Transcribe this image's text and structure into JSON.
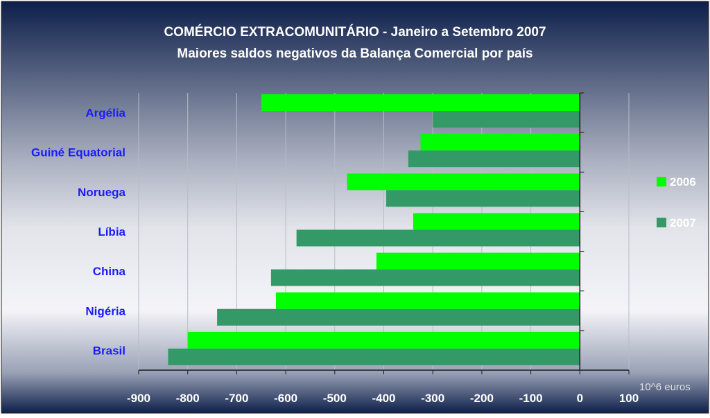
{
  "colors": {
    "bg_top": "#0d1f4a",
    "bg_bottom": "#f4f4f8",
    "title": "#ffffff",
    "category_label": "#1a1aff",
    "tick_label": "#ffffff",
    "legend_text": "#ffffff",
    "unit_label": "#e0e0e0",
    "series_2006": "#00ff00",
    "series_2007": "#339966",
    "gridline": "#b8bcc8"
  },
  "chart_data": {
    "type": "bar",
    "orientation": "horizontal",
    "title": "COMÉRCIO EXTRACOMUNITÁRIO - Janeiro a Setembro 2007",
    "subtitle": "Maiores saldos negativos da Balança Comercial por país",
    "categories": [
      "Argélia",
      "Guiné Equatorial",
      "Noruega",
      "Líbia",
      "China",
      "Nigéria",
      "Brasil"
    ],
    "series": [
      {
        "name": "2006",
        "color": "#00ff00",
        "values": [
          -650,
          -325,
          -475,
          -340,
          -415,
          -620,
          -800
        ]
      },
      {
        "name": "2007",
        "color": "#339966",
        "values": [
          -300,
          -350,
          -395,
          -578,
          -630,
          -740,
          -840
        ]
      }
    ],
    "xlim": [
      -900,
      100
    ],
    "xticks": [
      -900,
      -800,
      -700,
      -600,
      -500,
      -400,
      -300,
      -200,
      -100,
      0,
      100
    ],
    "xtick_labels": [
      "-900",
      "-800",
      "-700",
      "-600",
      "-500",
      "-400",
      "-300",
      "-200",
      "-100",
      "0",
      "100"
    ],
    "unit_label": "10^6 euros",
    "grid": true,
    "legend_position": "right"
  }
}
